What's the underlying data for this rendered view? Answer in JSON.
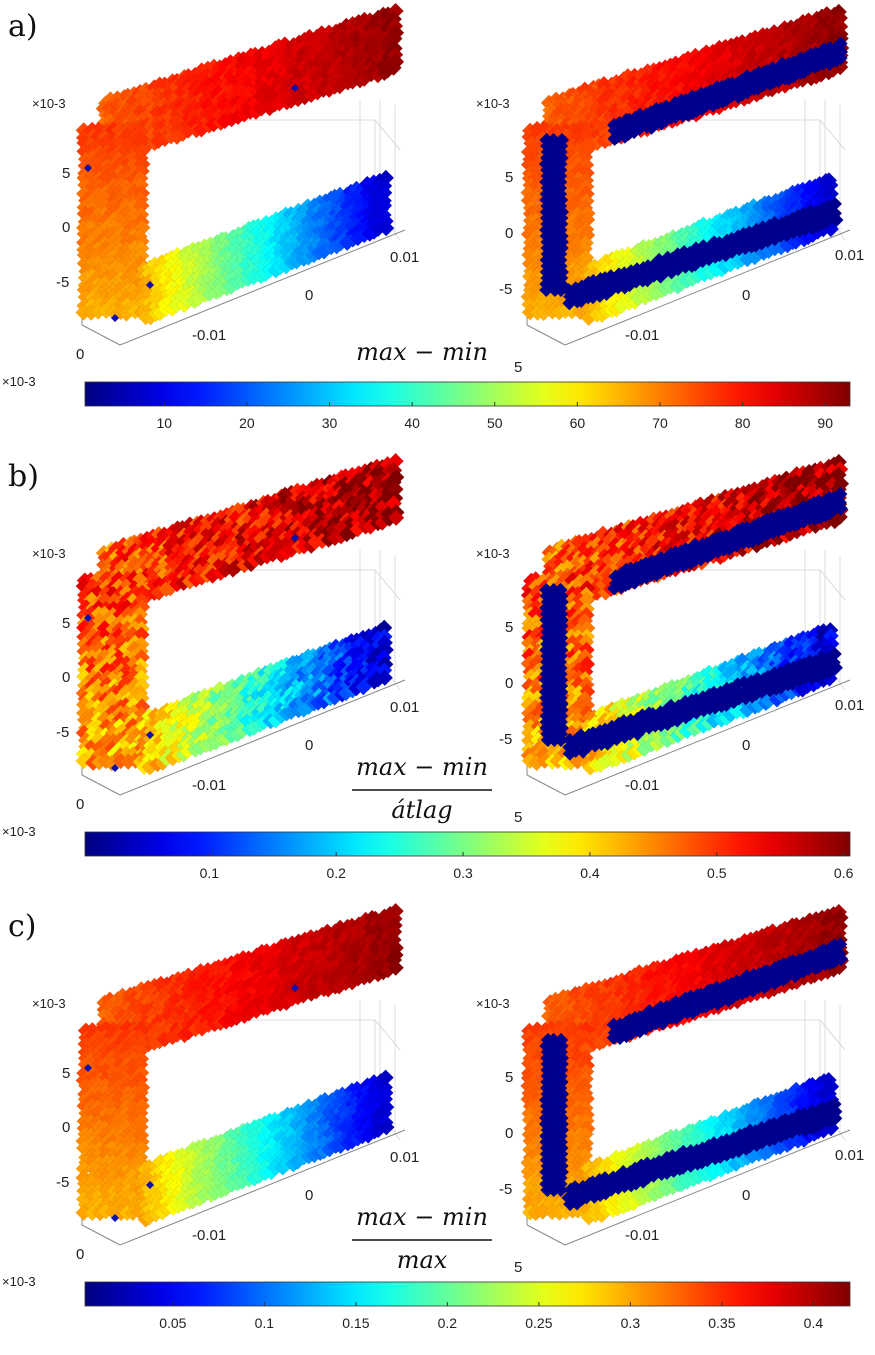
{
  "panels": [
    {
      "letter": "a)",
      "formula": {
        "numerator": "max − min",
        "denominator": ""
      },
      "colorbar": {
        "ticks": [
          10,
          20,
          30,
          40,
          50,
          60,
          70,
          80,
          90
        ],
        "range": [
          0.4,
          93
        ],
        "multiplier": "×10-3"
      },
      "left_plot": {
        "multiplier": "×10-3",
        "z_ticks": [
          "5",
          "0",
          "-5"
        ],
        "x_ticks": [
          "-0.01",
          "0",
          "0.01"
        ],
        "y_ticks": [
          "0"
        ]
      },
      "right_plot": {
        "multiplier": "×10-3",
        "z_ticks": [
          "5",
          "0",
          "-5"
        ],
        "x_ticks": [
          "-0.01",
          "0",
          "0.01"
        ],
        "y_ticks": [
          "5"
        ]
      }
    },
    {
      "letter": "b)",
      "formula": {
        "numerator": "max − min",
        "denominator": "átlag"
      },
      "colorbar": {
        "ticks": [
          0.1,
          0.2,
          0.3,
          0.4,
          0.5,
          0.6
        ],
        "range": [
          0.002,
          0.605
        ],
        "multiplier": "×10-3"
      },
      "left_plot": {
        "multiplier": "×10-3",
        "z_ticks": [
          "5",
          "0",
          "-5"
        ],
        "x_ticks": [
          "-0.01",
          "0",
          "0.01"
        ],
        "y_ticks": [
          "0"
        ]
      },
      "right_plot": {
        "multiplier": "×10-3",
        "z_ticks": [
          "5",
          "0",
          "-5"
        ],
        "x_ticks": [
          "-0.01",
          "0",
          "0.01"
        ],
        "y_ticks": [
          "5"
        ]
      }
    },
    {
      "letter": "c)",
      "formula": {
        "numerator": "max − min",
        "denominator": "max"
      },
      "colorbar": {
        "ticks": [
          0.05,
          0.1,
          0.15,
          0.2,
          0.25,
          0.3,
          0.35,
          0.4
        ],
        "range": [
          0.002,
          0.42
        ],
        "multiplier": "×10-3"
      },
      "left_plot": {
        "multiplier": "×10-3",
        "z_ticks": [
          "5",
          "0",
          "-5"
        ],
        "x_ticks": [
          "-0.01",
          "0",
          "0.01"
        ],
        "y_ticks": [
          "0"
        ]
      },
      "right_plot": {
        "multiplier": "×10-3",
        "z_ticks": [
          "5",
          "0",
          "-5"
        ],
        "x_ticks": [
          "-0.01",
          "0",
          "0.01"
        ],
        "y_ticks": [
          "5"
        ]
      }
    }
  ],
  "chart_data": [
    {
      "type": "scatter",
      "title": "a)",
      "colormap": "jet",
      "color_label": "max − min",
      "clim": [
        0.4,
        93
      ]
    },
    {
      "type": "scatter",
      "title": "b)",
      "colormap": "jet",
      "color_label": "(max − min) / átlag",
      "clim": [
        0.002,
        0.605
      ]
    },
    {
      "type": "scatter",
      "title": "c)",
      "colormap": "jet",
      "color_label": "(max − min) / max",
      "clim": [
        0.002,
        0.42
      ]
    }
  ]
}
